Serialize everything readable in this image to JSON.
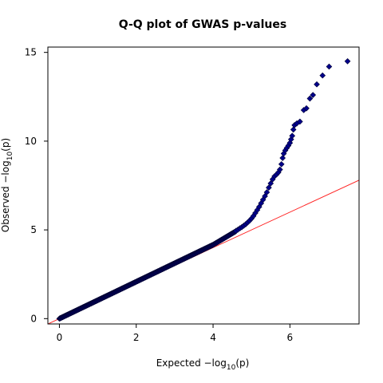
{
  "chart_data": {
    "type": "scatter",
    "title": "Q-Q plot of GWAS p-values",
    "xlabel": {
      "prefix": "Expected  −log",
      "sub": "10",
      "suffix": "(p)"
    },
    "ylabel": {
      "prefix": "Observed  −log",
      "sub": "10",
      "suffix": "(p)"
    },
    "xlim": [
      -0.3,
      7.8
    ],
    "ylim": [
      -0.3,
      15.3
    ],
    "x_ticks": [
      0,
      2,
      4,
      6
    ],
    "y_ticks": [
      0,
      5,
      10,
      15
    ],
    "grid": false,
    "legend": "none",
    "reference_line": {
      "slope": 1,
      "intercept": 0,
      "color": "#ff2222"
    },
    "point_color": "#00008b",
    "point_outline": "#000033",
    "series": [
      {
        "null_bulk": {
          "x_start": 0.0,
          "x_end": 4.6,
          "step": 0.015
        },
        "points": [
          [
            4.6,
            4.95
          ],
          [
            4.65,
            5.02
          ],
          [
            4.7,
            5.09
          ],
          [
            4.75,
            5.16
          ],
          [
            4.8,
            5.24
          ],
          [
            4.85,
            5.32
          ],
          [
            4.9,
            5.42
          ],
          [
            4.95,
            5.52
          ],
          [
            5.0,
            5.64
          ],
          [
            5.05,
            5.78
          ],
          [
            5.1,
            5.95
          ],
          [
            5.15,
            6.12
          ],
          [
            5.2,
            6.3
          ],
          [
            5.25,
            6.5
          ],
          [
            5.3,
            6.7
          ],
          [
            5.35,
            6.9
          ],
          [
            5.4,
            7.12
          ],
          [
            5.45,
            7.38
          ],
          [
            5.5,
            7.62
          ],
          [
            5.55,
            7.85
          ],
          [
            5.6,
            8.02
          ],
          [
            5.65,
            8.12
          ],
          [
            5.7,
            8.24
          ],
          [
            5.74,
            8.4
          ],
          [
            5.78,
            8.7
          ],
          [
            5.81,
            9.05
          ],
          [
            5.84,
            9.3
          ],
          [
            5.88,
            9.48
          ],
          [
            5.92,
            9.62
          ],
          [
            5.96,
            9.75
          ],
          [
            6.0,
            9.9
          ],
          [
            6.03,
            10.1
          ],
          [
            6.06,
            10.3
          ],
          [
            6.09,
            10.65
          ],
          [
            6.12,
            10.9
          ],
          [
            6.18,
            11.0
          ],
          [
            6.26,
            11.1
          ],
          [
            6.36,
            11.75
          ],
          [
            6.43,
            11.85
          ],
          [
            6.52,
            12.4
          ],
          [
            6.6,
            12.6
          ],
          [
            6.7,
            13.2
          ],
          [
            6.85,
            13.7
          ],
          [
            7.02,
            14.2
          ],
          [
            7.5,
            14.5
          ]
        ]
      }
    ]
  }
}
